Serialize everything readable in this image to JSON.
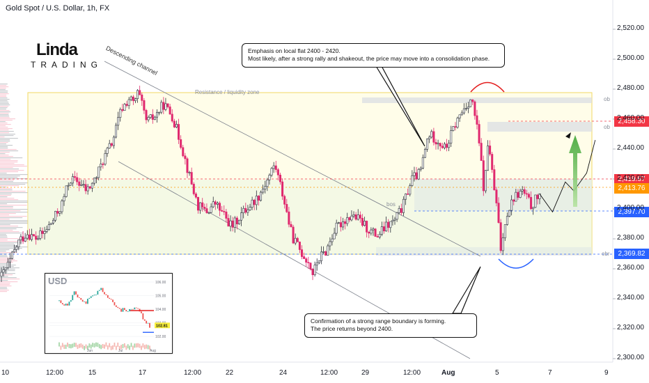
{
  "header": {
    "symbol_title": "Gold Spot / U.S. Dollar, 1h, FX"
  },
  "logo": {
    "top": "Linda",
    "bottom": "TRADING",
    "mark": "R"
  },
  "annotations": {
    "descending_channel": "Descending channel",
    "resistance_zone": "Resistance / liquidity zone",
    "bos": "bos",
    "ob_top": "ob",
    "ob_mid": "ob",
    "obr": "obr",
    "callout_top_line1": "Emphasis on local flat 2400 - 2420.",
    "callout_top_line2": "Most likely, after a strong rally and shakeout, the price may move into a consolidation phase.",
    "callout_bottom_line1": "Confirmation of a strong range boundary is forming.",
    "callout_bottom_line2": "The price returns beyond 2400."
  },
  "price_tags": [
    {
      "value": "2,458.30",
      "color": "#f23645"
    },
    {
      "value": "2,419.67",
      "color": "#f23645"
    },
    {
      "value": "2,413.76",
      "color": "#ff9800"
    },
    {
      "value": "2,397.70",
      "color": "#2962ff"
    },
    {
      "value": "2,369.82",
      "color": "#2962ff"
    }
  ],
  "colors": {
    "up": "#26a69a",
    "down": "#e0286e",
    "body_dark": "#2a2e39",
    "zone_yellow": "#f5e663",
    "zone_green": "#e8f7e8",
    "accent_blue": "#2962ff",
    "accent_red": "#f23645"
  },
  "inset": {
    "title": "USD",
    "y_ticks": [
      "106.00",
      "105.00",
      "104.00",
      "103.00",
      "102.81",
      "102.00"
    ],
    "x_ticks": [
      "Jun",
      "Jul",
      "Aug"
    ],
    "price_tag": "102.81"
  },
  "chart_data": {
    "type": "candlestick",
    "title": "Gold Spot / U.S. Dollar, 1h, FX",
    "ylim": [
      2295,
      2545
    ],
    "y_ticks": [
      2300,
      2320,
      2340,
      2360,
      2380,
      2400,
      2420,
      2440,
      2460,
      2480,
      2500,
      2520
    ],
    "y_tick_labels": [
      "2,300.00",
      "2,320.00",
      "2,340.00",
      "2,360.00",
      "2,380.00",
      "2,400.00",
      "2,420.00",
      "2,440.00",
      "2,460.00",
      "2,480.00",
      "2,500.00",
      "2,520.00"
    ],
    "x_ticks": [
      "10",
      "12:00",
      "15",
      "17",
      "12:00",
      "22",
      "24",
      "12:00",
      "29",
      "12:00",
      "Aug",
      "5",
      "7",
      "9"
    ],
    "path_points": [
      [
        0,
        2355
      ],
      [
        2,
        2365
      ],
      [
        4,
        2378
      ],
      [
        6,
        2384
      ],
      [
        8,
        2380
      ],
      [
        10,
        2384
      ],
      [
        12,
        2392
      ],
      [
        14,
        2402
      ],
      [
        16,
        2420
      ],
      [
        18,
        2418
      ],
      [
        20,
        2412
      ],
      [
        22,
        2420
      ],
      [
        24,
        2434
      ],
      [
        26,
        2445
      ],
      [
        28,
        2466
      ],
      [
        30,
        2474
      ],
      [
        31,
        2470
      ],
      [
        32,
        2478
      ],
      [
        34,
        2458
      ],
      [
        36,
        2462
      ],
      [
        38,
        2470
      ],
      [
        40,
        2462
      ],
      [
        42,
        2444
      ],
      [
        44,
        2422
      ],
      [
        46,
        2402
      ],
      [
        48,
        2398
      ],
      [
        50,
        2404
      ],
      [
        52,
        2396
      ],
      [
        54,
        2388
      ],
      [
        56,
        2396
      ],
      [
        58,
        2402
      ],
      [
        60,
        2408
      ],
      [
        62,
        2418
      ],
      [
        64,
        2430
      ],
      [
        66,
        2408
      ],
      [
        68,
        2382
      ],
      [
        70,
        2372
      ],
      [
        72,
        2364
      ],
      [
        73,
        2356
      ],
      [
        74,
        2366
      ],
      [
        76,
        2372
      ],
      [
        78,
        2386
      ],
      [
        80,
        2392
      ],
      [
        82,
        2396
      ],
      [
        84,
        2392
      ],
      [
        86,
        2386
      ],
      [
        88,
        2382
      ],
      [
        90,
        2388
      ],
      [
        92,
        2392
      ],
      [
        94,
        2402
      ],
      [
        96,
        2420
      ],
      [
        98,
        2424
      ],
      [
        100,
        2450
      ],
      [
        102,
        2446
      ],
      [
        104,
        2440
      ],
      [
        106,
        2455
      ],
      [
        108,
        2466
      ],
      [
        110,
        2474
      ],
      [
        111,
        2460
      ],
      [
        112,
        2440
      ],
      [
        113,
        2410
      ],
      [
        114,
        2448
      ],
      [
        115,
        2420
      ],
      [
        116,
        2400
      ],
      [
        117,
        2370
      ],
      [
        118,
        2395
      ],
      [
        120,
        2408
      ],
      [
        122,
        2412
      ],
      [
        124,
        2402
      ],
      [
        126,
        2410
      ]
    ],
    "levels": {
      "resistance_top": 2476,
      "ob_top_low": 2471,
      "ob_mid_high": 2458.3,
      "ob_mid_low": 2452,
      "flat_high": 2419.67,
      "current": 2413.76,
      "flat_low": 2397.7,
      "range_low": 2369.82
    },
    "forecast_path": [
      [
        126,
        2410
      ],
      [
        129,
        2398
      ],
      [
        132,
        2418
      ],
      [
        134,
        2412
      ],
      [
        137,
        2424
      ],
      [
        139,
        2446
      ]
    ]
  }
}
